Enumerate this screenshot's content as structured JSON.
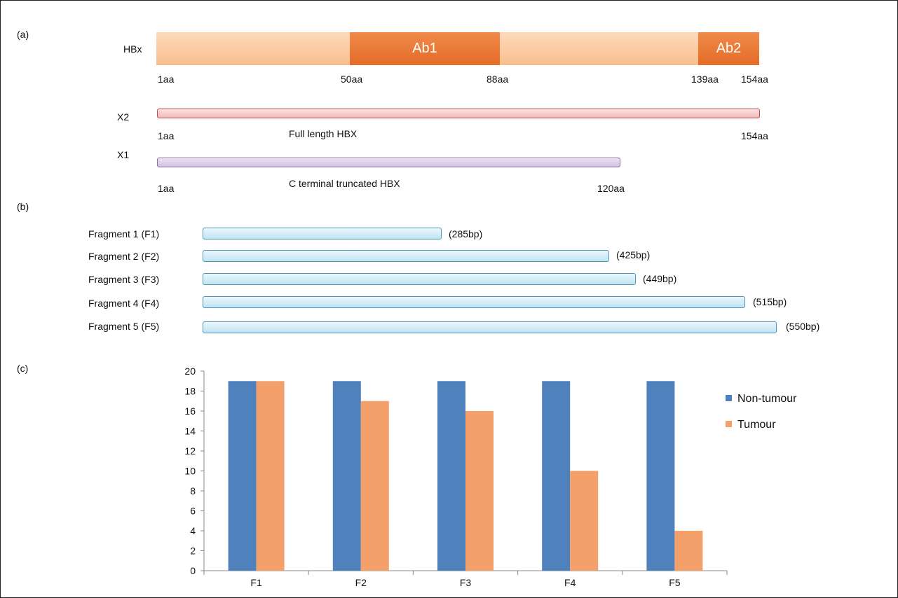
{
  "panels": {
    "a": "(a)",
    "b": "(b)",
    "c": "(c)"
  },
  "hbx": {
    "label": "HBx",
    "ab1": "Ab1",
    "ab2": "Ab2",
    "positions": [
      "1aa",
      "50aa",
      "88aa",
      "139aa",
      "154aa"
    ]
  },
  "x2": {
    "label": "X2",
    "start": "1aa",
    "desc": "Full length HBX",
    "end": "154aa"
  },
  "x1": {
    "label": "X1",
    "start": "1aa",
    "desc": "C terminal truncated HBX",
    "end": "120aa"
  },
  "fragments": [
    {
      "name": "Fragment 1 (F1)",
      "size": "(285bp)"
    },
    {
      "name": "Fragment 2 (F2)",
      "size": "(425bp)"
    },
    {
      "name": "Fragment 3 (F3)",
      "size": "(449bp)"
    },
    {
      "name": "Fragment 4 (F4)",
      "size": "(515bp)"
    },
    {
      "name": "Fragment 5 (F5)",
      "size": "(550bp)"
    }
  ],
  "colors": {
    "non_tumour": "#4f81bd",
    "tumour": "#f4a06b"
  },
  "chart_data": {
    "type": "bar",
    "categories": [
      "F1",
      "F2",
      "F3",
      "F4",
      "F5"
    ],
    "series": [
      {
        "name": "Non-tumour",
        "values": [
          19,
          19,
          19,
          19,
          19
        ]
      },
      {
        "name": "Tumour",
        "values": [
          19,
          17,
          16,
          10,
          4
        ]
      }
    ],
    "ylim": [
      0,
      20
    ],
    "yticks": [
      0,
      2,
      4,
      6,
      8,
      10,
      12,
      14,
      16,
      18,
      20
    ],
    "grid": false,
    "legend": "right"
  }
}
